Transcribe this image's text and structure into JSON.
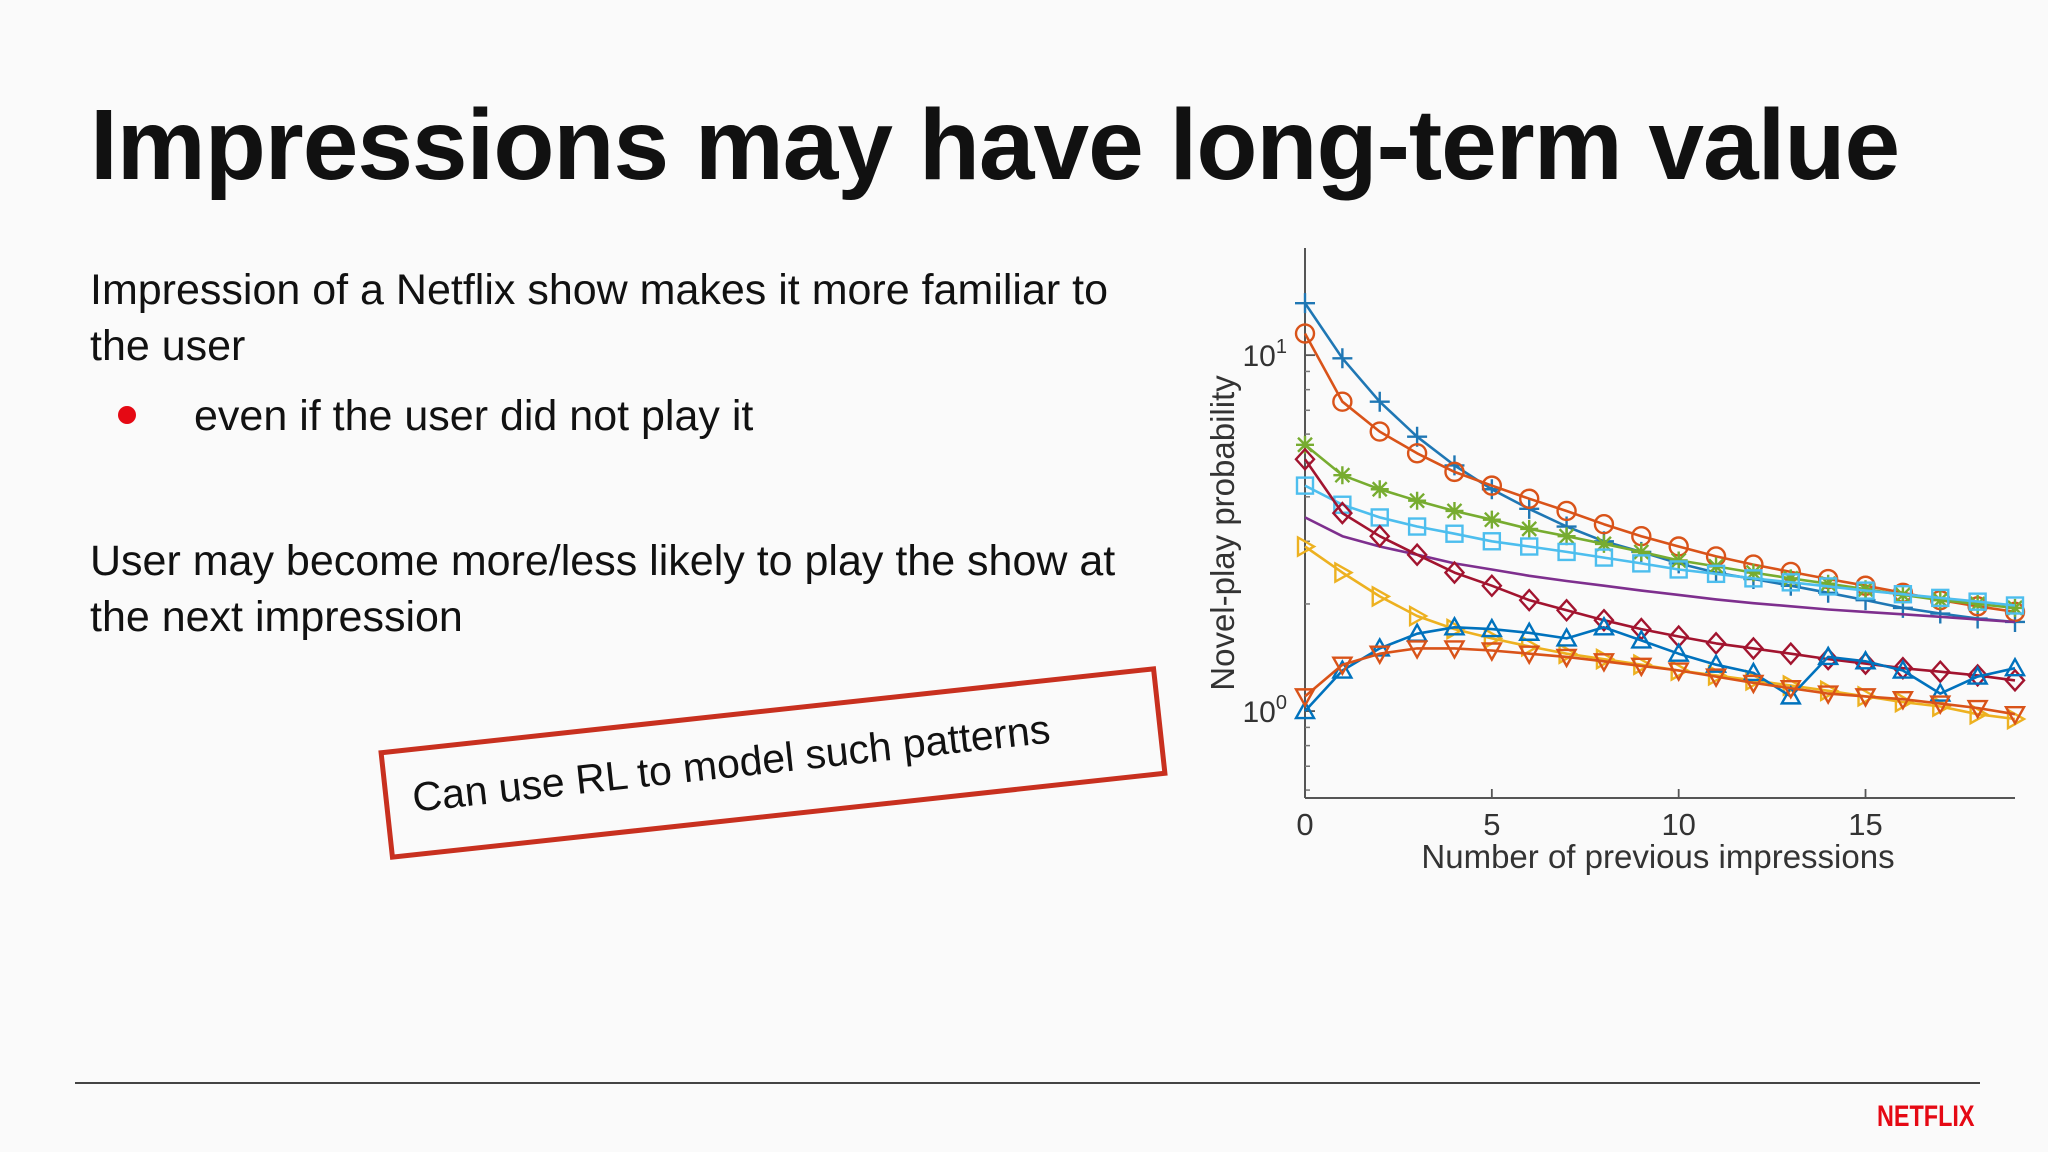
{
  "slide": {
    "title": "Impressions may have long-term value",
    "paragraph_1": "Impression of a Netflix show makes it more familiar to the user",
    "bullet": "even if the user did not play it",
    "paragraph_2": "User may become more/less likely to play the show at the next impression",
    "annotation": "Can use RL to model such patterns",
    "logo": "NETFLIX"
  },
  "colors": {
    "accent": "#e50914",
    "annotation_box": "#c8301f"
  },
  "chart_data": {
    "type": "line",
    "xlabel": "Number of previous impressions",
    "ylabel": "Novel-play probability",
    "y_scale": "log",
    "xlim": [
      0,
      19
    ],
    "ylim": [
      0.57,
      20
    ],
    "x_ticks": [
      "0",
      "5",
      "10",
      "15"
    ],
    "y_ticks": [
      {
        "base": "10",
        "exp": "0",
        "value": 1
      },
      {
        "base": "10",
        "exp": "1",
        "value": 10
      }
    ],
    "grid": false,
    "legend": "none",
    "x": [
      0,
      1,
      2,
      3,
      4,
      5,
      6,
      7,
      8,
      9,
      10,
      11,
      12,
      13,
      14,
      15,
      16,
      17,
      18,
      19
    ],
    "series": [
      {
        "color": "#1f77b4",
        "marker": "plus",
        "values": [
          14,
          9.8,
          7.4,
          5.9,
          4.9,
          4.2,
          3.7,
          3.3,
          3.0,
          2.8,
          2.6,
          2.45,
          2.35,
          2.25,
          2.15,
          2.05,
          1.95,
          1.88,
          1.82,
          1.78
        ]
      },
      {
        "color": "#d95319",
        "marker": "circle",
        "values": [
          11.5,
          7.4,
          6.1,
          5.3,
          4.7,
          4.3,
          3.95,
          3.65,
          3.35,
          3.1,
          2.9,
          2.72,
          2.58,
          2.46,
          2.35,
          2.25,
          2.15,
          2.05,
          1.97,
          1.9
        ]
      },
      {
        "color": "#77ac30",
        "marker": "star",
        "values": [
          5.6,
          4.6,
          4.2,
          3.9,
          3.65,
          3.45,
          3.25,
          3.1,
          2.95,
          2.8,
          2.65,
          2.55,
          2.45,
          2.36,
          2.28,
          2.2,
          2.12,
          2.05,
          2.0,
          1.95
        ]
      },
      {
        "color": "#4dbeee",
        "marker": "square",
        "values": [
          4.3,
          3.8,
          3.5,
          3.3,
          3.15,
          3.0,
          2.9,
          2.8,
          2.7,
          2.6,
          2.5,
          2.43,
          2.36,
          2.3,
          2.24,
          2.18,
          2.13,
          2.08,
          2.03,
          1.98
        ]
      },
      {
        "color": "#7e2f8e",
        "marker": "none",
        "values": [
          3.5,
          3.1,
          2.9,
          2.75,
          2.6,
          2.5,
          2.4,
          2.32,
          2.25,
          2.18,
          2.12,
          2.06,
          2.01,
          1.97,
          1.93,
          1.9,
          1.87,
          1.84,
          1.81,
          1.78
        ]
      },
      {
        "color": "#a2142f",
        "marker": "diamond",
        "values": [
          5.1,
          3.6,
          3.1,
          2.75,
          2.45,
          2.25,
          2.05,
          1.92,
          1.8,
          1.7,
          1.62,
          1.55,
          1.5,
          1.45,
          1.4,
          1.36,
          1.32,
          1.29,
          1.26,
          1.22
        ]
      },
      {
        "color": "#edb120",
        "marker": "triangle-right",
        "values": [
          2.9,
          2.45,
          2.1,
          1.85,
          1.7,
          1.6,
          1.52,
          1.45,
          1.4,
          1.35,
          1.3,
          1.26,
          1.22,
          1.18,
          1.14,
          1.1,
          1.06,
          1.03,
          0.98,
          0.95
        ]
      },
      {
        "color": "#0072bd",
        "marker": "triangle-up",
        "values": [
          1.0,
          1.3,
          1.5,
          1.65,
          1.72,
          1.7,
          1.66,
          1.6,
          1.72,
          1.58,
          1.45,
          1.35,
          1.28,
          1.1,
          1.42,
          1.38,
          1.3,
          1.12,
          1.25,
          1.32
        ]
      },
      {
        "color": "#d95319",
        "marker": "triangle-down",
        "values": [
          1.1,
          1.35,
          1.45,
          1.5,
          1.5,
          1.48,
          1.45,
          1.42,
          1.38,
          1.34,
          1.3,
          1.25,
          1.2,
          1.16,
          1.12,
          1.1,
          1.08,
          1.05,
          1.02,
          0.98
        ]
      }
    ]
  }
}
